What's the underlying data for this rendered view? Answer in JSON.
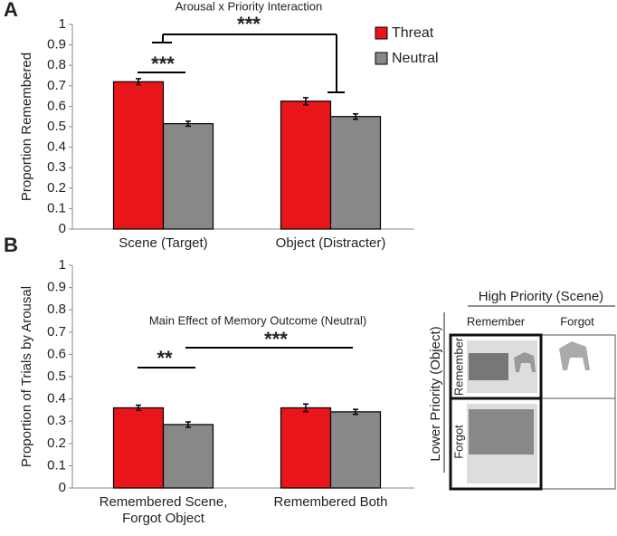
{
  "chart_data": [
    {
      "type": "bar",
      "panel_label": "A",
      "title": "Arousal x Priority Interaction",
      "y_label": "Proportion Remembered",
      "categories": [
        "Scene (Target)",
        "Object (Distracter)"
      ],
      "series": [
        {
          "name": "Threat",
          "color": "#e8161b",
          "values": [
            0.72,
            0.625
          ],
          "errors": [
            0.015,
            0.017
          ]
        },
        {
          "name": "Neutral",
          "color": "#888888",
          "values": [
            0.515,
            0.55
          ],
          "errors": [
            0.012,
            0.013
          ]
        }
      ],
      "ylim": [
        0,
        1
      ],
      "yticks": [
        0,
        0.1,
        0.2,
        0.3,
        0.4,
        0.5,
        0.6,
        0.7,
        0.8,
        0.9,
        1
      ],
      "legend": "top-right",
      "annotations": [
        "***",
        "***"
      ]
    },
    {
      "type": "bar",
      "panel_label": "B",
      "title": "Main Effect of Memory Outcome (Neutral)",
      "y_label": "Proportion of Trials  by Arousal",
      "categories": [
        "Remembered Scene,\nForgot Object",
        "Remembered Both"
      ],
      "series": [
        {
          "color": "#e8161b",
          "values": [
            0.36,
            0.36
          ],
          "errors": [
            0.012,
            0.017
          ]
        },
        {
          "color": "#888888",
          "values": [
            0.285,
            0.342
          ],
          "errors": [
            0.012,
            0.011
          ]
        }
      ],
      "ylim": [
        0,
        1
      ],
      "yticks": [
        0,
        0.1,
        0.2,
        0.3,
        0.4,
        0.5,
        0.6,
        0.7,
        0.8,
        0.9,
        1
      ],
      "annotations": [
        "**",
        "***"
      ]
    }
  ],
  "diagram": {
    "column_title": "High Priority (Scene)",
    "row_title": "Lower Priority (Object)",
    "columns": [
      "Remember",
      "Forgot"
    ],
    "rows": [
      "Remember",
      "Forgot"
    ]
  }
}
